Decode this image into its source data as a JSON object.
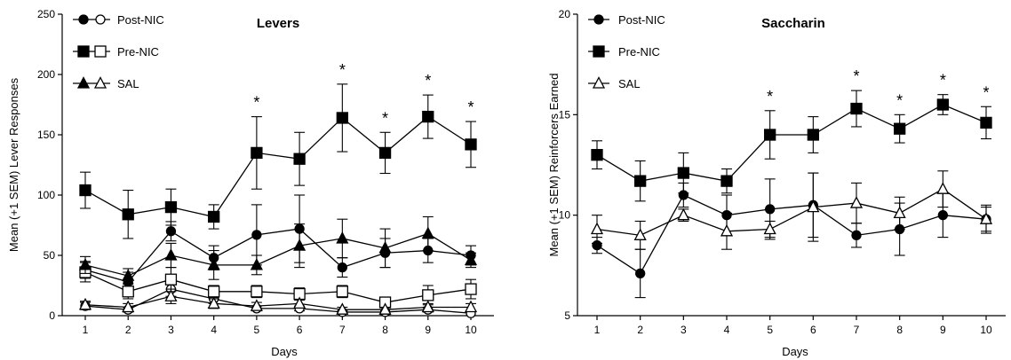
{
  "chart_data": [
    {
      "type": "line",
      "title": "Levers",
      "xlabel": "Days",
      "ylabel": "Mean (+1 SEM) Lever Responses",
      "x": [
        1,
        2,
        3,
        4,
        5,
        6,
        7,
        8,
        9,
        10
      ],
      "ylim": [
        0,
        250
      ],
      "yticks": [
        0,
        50,
        100,
        150,
        200,
        250
      ],
      "legend_position": "top-left",
      "significance_marker": "*",
      "significant_days": [
        5,
        7,
        8,
        9,
        10
      ],
      "legend_entries": [
        "Post-NIC",
        "Pre-NIC",
        "SAL"
      ],
      "series": [
        {
          "name": "Post-NIC",
          "lever": "active",
          "marker": "filled-circle",
          "values": [
            38,
            28,
            70,
            48,
            67,
            72,
            40,
            52,
            54,
            50
          ],
          "sem": [
            7,
            8,
            8,
            10,
            25,
            28,
            8,
            12,
            10,
            8
          ]
        },
        {
          "name": "Post-NIC",
          "lever": "inactive",
          "marker": "open-circle",
          "values": [
            8,
            5,
            22,
            14,
            6,
            6,
            3,
            3,
            5,
            2
          ],
          "sem": [
            3,
            2,
            6,
            4,
            2,
            2,
            1,
            2,
            2,
            2
          ]
        },
        {
          "name": "Pre-NIC",
          "lever": "active",
          "marker": "filled-square",
          "values": [
            104,
            84,
            90,
            82,
            135,
            130,
            164,
            135,
            165,
            142
          ],
          "sem": [
            15,
            20,
            15,
            10,
            30,
            22,
            28,
            17,
            18,
            19
          ]
        },
        {
          "name": "Pre-NIC",
          "lever": "inactive",
          "marker": "open-square",
          "values": [
            36,
            20,
            30,
            20,
            20,
            18,
            20,
            11,
            17,
            22
          ],
          "sem": [
            8,
            6,
            10,
            5,
            5,
            5,
            5,
            4,
            8,
            8
          ]
        },
        {
          "name": "SAL",
          "lever": "active",
          "marker": "filled-triangle",
          "values": [
            42,
            33,
            50,
            42,
            42,
            58,
            64,
            56,
            68,
            46
          ],
          "sem": [
            7,
            6,
            10,
            12,
            8,
            18,
            16,
            16,
            14,
            6
          ]
        },
        {
          "name": "SAL",
          "lever": "inactive",
          "marker": "open-triangle",
          "values": [
            9,
            7,
            16,
            10,
            8,
            10,
            5,
            5,
            7,
            7
          ],
          "sem": [
            3,
            3,
            6,
            4,
            3,
            3,
            2,
            2,
            3,
            3
          ]
        }
      ]
    },
    {
      "type": "line",
      "title": "Saccharin",
      "xlabel": "Days",
      "ylabel": "Mean (+1 SEM) Reinforcers Earned",
      "x": [
        1,
        2,
        3,
        4,
        5,
        6,
        7,
        8,
        9,
        10
      ],
      "ylim": [
        5,
        20
      ],
      "yticks": [
        5,
        10,
        15,
        20
      ],
      "legend_position": "top-left",
      "significance_marker": "*",
      "significant_days": [
        5,
        7,
        8,
        9,
        10
      ],
      "legend_entries": [
        "Post-NIC",
        "Pre-NIC",
        "SAL"
      ],
      "series": [
        {
          "name": "Post-NIC",
          "marker": "filled-circle",
          "values": [
            8.5,
            7.1,
            11.0,
            10.0,
            10.3,
            10.5,
            9.0,
            9.3,
            10.0,
            9.8
          ],
          "sem": [
            0.4,
            1.2,
            0.6,
            1.0,
            1.5,
            1.6,
            0.6,
            1.3,
            1.1,
            0.6
          ]
        },
        {
          "name": "Pre-NIC",
          "marker": "filled-square",
          "values": [
            13.0,
            11.7,
            12.1,
            11.7,
            14.0,
            14.0,
            15.3,
            14.3,
            15.5,
            14.6
          ],
          "sem": [
            0.7,
            1.0,
            1.0,
            0.6,
            1.2,
            0.9,
            0.9,
            0.7,
            0.5,
            0.8
          ]
        },
        {
          "name": "SAL",
          "marker": "open-triangle",
          "values": [
            9.3,
            9.0,
            10.0,
            9.2,
            9.3,
            10.4,
            10.6,
            10.1,
            11.3,
            9.8
          ],
          "sem": [
            0.7,
            0.7,
            0.3,
            0.9,
            0.4,
            1.7,
            1.0,
            0.8,
            0.9,
            0.7
          ]
        }
      ]
    }
  ]
}
